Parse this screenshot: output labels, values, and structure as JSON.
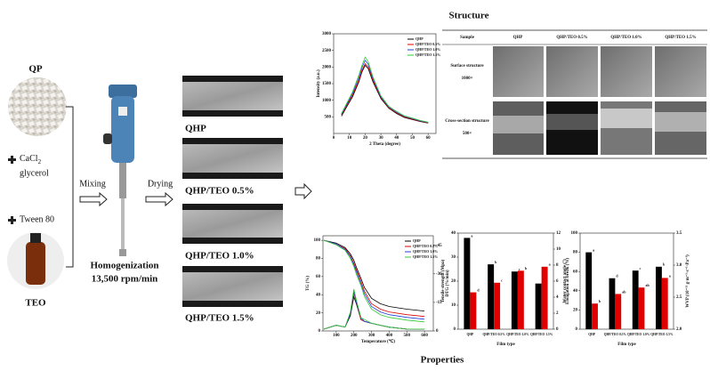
{
  "left": {
    "qp_label": "QP",
    "cacl": "CaCl",
    "cacl_sub": "2",
    "glycerol": "glycerol",
    "tween": "Tween 80",
    "teo_label": "TEO",
    "mixing": "Mixing",
    "drying": "Drying",
    "homogenization": "Homogenization",
    "speed": "13,500 rpm/min"
  },
  "films": [
    "QHP",
    "QHP/TEO 0.5%",
    "QHP/TEO 1.0%",
    "QHP/TEO 1.5%"
  ],
  "structure_title": "Structure",
  "properties_title": "Properties",
  "sem_table": {
    "header": [
      "Sample",
      "QHP",
      "QHP/TEO 0.5%",
      "QHP/TEO 1.0%",
      "QHP/TEO 1.5%"
    ],
    "rows": [
      [
        "Surface structure",
        "1000×"
      ],
      [
        "Cross-section structure",
        "500×"
      ]
    ]
  },
  "chart_data": [
    {
      "type": "line",
      "xlabel": "2 Theta (degree)",
      "ylabel": "Intensity (a.u.)",
      "x": [
        5,
        8,
        12,
        16,
        18,
        20,
        22,
        25,
        30,
        35,
        40,
        45,
        50,
        55,
        60
      ],
      "xlim": [
        0,
        65
      ],
      "xticks": [
        0,
        10,
        20,
        30,
        40,
        50,
        60
      ],
      "ylim": [
        0,
        3000
      ],
      "yticks": [
        500,
        1000,
        1500,
        2000,
        2500,
        3000
      ],
      "series": [
        {
          "name": "QHP",
          "color": "#000000",
          "values": [
            520,
            780,
            1100,
            1550,
            1850,
            2050,
            1950,
            1550,
            1050,
            760,
            600,
            480,
            420,
            360,
            310
          ]
        },
        {
          "name": "QHP/TEO 0.5%",
          "color": "#e00000",
          "values": [
            560,
            820,
            1150,
            1600,
            1900,
            2100,
            2000,
            1600,
            1080,
            780,
            620,
            500,
            430,
            370,
            320
          ]
        },
        {
          "name": "QHP/TEO 1.0%",
          "color": "#2040e0",
          "values": [
            580,
            850,
            1200,
            1680,
            1980,
            2200,
            2080,
            1650,
            1100,
            800,
            640,
            520,
            450,
            380,
            330
          ]
        },
        {
          "name": "QHP/TEO 1.5%",
          "color": "#33cc33",
          "values": [
            600,
            880,
            1250,
            1750,
            2050,
            2300,
            2150,
            1700,
            1130,
            820,
            660,
            530,
            460,
            390,
            340
          ]
        }
      ]
    },
    {
      "type": "line",
      "xlabel": "Temperature (℃)",
      "ylabel": "TG (%)",
      "y2label": "DTG (%/min)",
      "x": [
        30,
        100,
        150,
        180,
        200,
        215,
        240,
        260,
        300,
        350,
        400,
        500,
        600
      ],
      "xlim": [
        25,
        650
      ],
      "xticks": [
        100,
        200,
        300,
        400,
        500,
        600
      ],
      "ylim": [
        0,
        105
      ],
      "yticks": [
        0,
        20,
        40,
        60,
        80,
        100
      ],
      "y2lim": [
        0,
        -50
      ],
      "y2ticks": [
        0,
        -15,
        -30,
        -45
      ],
      "series": [
        {
          "name": "QHP",
          "color": "#000000",
          "values": [
            100,
            97,
            92,
            85,
            78,
            70,
            58,
            48,
            36,
            30,
            27,
            24,
            22
          ]
        },
        {
          "name": "QHP/TEO 0.5%",
          "color": "#e00000",
          "values": [
            100,
            96,
            91,
            83,
            75,
            67,
            55,
            44,
            30,
            24,
            21,
            18,
            16
          ]
        },
        {
          "name": "QHP/TEO 1.0%",
          "color": "#2040e0",
          "values": [
            100,
            96,
            90,
            82,
            73,
            65,
            52,
            41,
            27,
            21,
            18,
            15,
            13
          ]
        },
        {
          "name": "QHP/TEO 1.5%",
          "color": "#33cc33",
          "values": [
            100,
            95,
            89,
            80,
            71,
            62,
            50,
            38,
            24,
            18,
            15,
            12,
            10
          ]
        },
        {
          "color": "#000000",
          "axis": "y2",
          "values": [
            -1,
            -3,
            -2,
            -8,
            -18,
            -14,
            -6,
            -5,
            -4,
            -3,
            -2,
            -1,
            -1
          ]
        },
        {
          "color": "#e00000",
          "axis": "y2",
          "values": [
            -1,
            -3,
            -2,
            -9,
            -20,
            -15,
            -6,
            -5,
            -4,
            -3,
            -2,
            -1,
            -1
          ]
        },
        {
          "color": "#2040e0",
          "axis": "y2",
          "values": [
            -1,
            -3,
            -2,
            -9,
            -21,
            -15,
            -7,
            -5,
            -4,
            -3,
            -2,
            -1,
            -1
          ]
        },
        {
          "color": "#33cc33",
          "axis": "y2",
          "values": [
            -1,
            -3,
            -2,
            -10,
            -22,
            -16,
            -7,
            -6,
            -4,
            -3,
            -2,
            -1,
            -1
          ]
        }
      ]
    },
    {
      "type": "bar",
      "xlabel": "Film type",
      "ylabel": "Tensile strength (Mpa)",
      "y2label": "Elongation at break (%)",
      "categories": [
        "QHP",
        "QHP/TEO 0.5%",
        "QHP/TEO 1.0%",
        "QHP/TEO 1.5%"
      ],
      "ylim": [
        0,
        40
      ],
      "yticks": [
        0,
        10,
        20,
        30,
        40
      ],
      "y2lim": [
        0,
        12
      ],
      "y2ticks": [
        0,
        2,
        4,
        6,
        8,
        10,
        12
      ],
      "series": [
        {
          "color": "#000000",
          "values": [
            38,
            27,
            24,
            19
          ],
          "letters": [
            "a",
            "b",
            "c",
            "d"
          ]
        },
        {
          "color": "#e00000",
          "axis": "y2",
          "values": [
            4.6,
            5.8,
            7.3,
            7.8
          ],
          "letters": [
            "d",
            "c",
            "b",
            "a"
          ]
        }
      ]
    },
    {
      "type": "bar",
      "xlabel": "Film type",
      "ylabel": "Water contact angle (°)",
      "y2label": "WVP (10⁻¹¹ g·m⁻¹·s⁻¹·Pa⁻¹)",
      "categories": [
        "QHP",
        "QHP/TEO 0.5%",
        "QHP/TEO 1.0%",
        "QHP/TEO 1.5%"
      ],
      "ylim": [
        0,
        100
      ],
      "yticks": [
        0,
        20,
        40,
        60,
        80,
        100
      ],
      "y2lim": [
        2,
        3.5
      ],
      "y2ticks": [
        {
          "value": 2,
          "label": "2.0"
        },
        2.5,
        {
          "value": 3,
          "label": "3.0"
        },
        3.5
      ],
      "series": [
        {
          "color": "#000000",
          "values": [
            80,
            53,
            61,
            65
          ],
          "letters": [
            "a",
            "d",
            "c",
            "b"
          ]
        },
        {
          "color": "#e00000",
          "axis": "y2",
          "values": [
            2.4,
            2.55,
            2.65,
            2.8
          ],
          "letters": [
            "b",
            "ab",
            "ab",
            "a"
          ]
        }
      ]
    }
  ]
}
